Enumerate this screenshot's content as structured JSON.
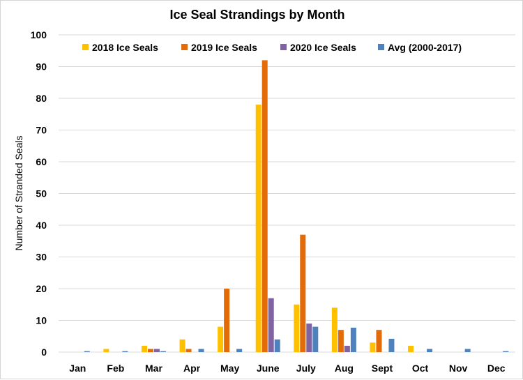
{
  "chart_data": {
    "type": "bar",
    "title": "Ice Seal Strandings by Month",
    "xlabel": "",
    "ylabel": "Number of Stranded Seals",
    "ylim": [
      0,
      100
    ],
    "yticks": [
      "0",
      "10",
      "20",
      "30",
      "40",
      "50",
      "60",
      "70",
      "80",
      "90",
      "100"
    ],
    "grid": true,
    "legend_position": "top",
    "categories": [
      "Jan",
      "Feb",
      "Mar",
      "Apr",
      "May",
      "June",
      "July",
      "Aug",
      "Sept",
      "Oct",
      "Nov",
      "Dec"
    ],
    "series": [
      {
        "name": "2018 Ice Seals",
        "color": "#FFC000",
        "values": [
          0,
          1,
          2,
          4,
          8,
          78,
          15,
          14,
          3,
          2,
          0,
          0
        ]
      },
      {
        "name": "2019 Ice Seals",
        "color": "#E36C09",
        "values": [
          0,
          0,
          1,
          1,
          20,
          92,
          37,
          7,
          7,
          0,
          0,
          0
        ]
      },
      {
        "name": "2020 Ice Seals",
        "color": "#8064A2",
        "values": [
          0,
          0,
          1,
          0,
          0,
          17,
          9,
          2,
          0,
          0,
          0,
          0
        ]
      },
      {
        "name": "Avg (2000-2017)",
        "color": "#4F81BD",
        "values": [
          0.3,
          0.3,
          0.3,
          1,
          1,
          4,
          8,
          7.7,
          4.2,
          1,
          1,
          0.3
        ]
      }
    ]
  }
}
